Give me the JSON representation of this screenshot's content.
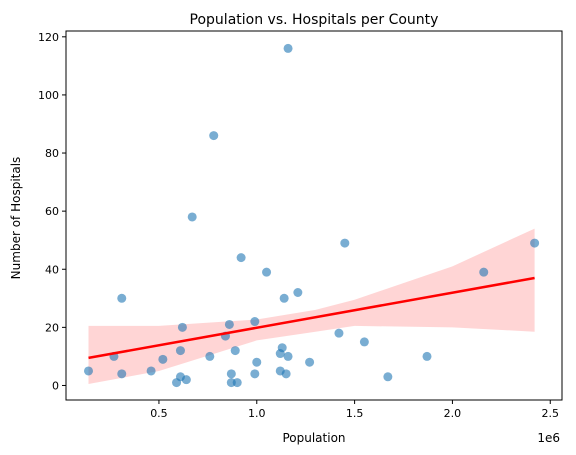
{
  "chart_data": {
    "type": "scatter",
    "title": "Population vs. Hospitals per County",
    "xlabel": "Population",
    "ylabel": "Number of Hospitals",
    "x_offset_label": "1e6",
    "xlim": [
      25000,
      2560000
    ],
    "ylim": [
      -5,
      122
    ],
    "x_ticks": [
      500000,
      1000000,
      1500000,
      2000000,
      2500000
    ],
    "x_tick_labels": [
      "0.5",
      "1.0",
      "1.5",
      "2.0",
      "2.5"
    ],
    "y_ticks": [
      0,
      20,
      40,
      60,
      80,
      100,
      120
    ],
    "y_tick_labels": [
      "0",
      "20",
      "40",
      "60",
      "80",
      "100",
      "120"
    ],
    "grid": false,
    "colors": {
      "points": "#1f77b4",
      "regression_line": "#ff0000",
      "confidence_band": "#ffb3b3"
    },
    "points": [
      {
        "x": 140000,
        "y": 5
      },
      {
        "x": 270000,
        "y": 10
      },
      {
        "x": 310000,
        "y": 30
      },
      {
        "x": 310000,
        "y": 4
      },
      {
        "x": 460000,
        "y": 5
      },
      {
        "x": 520000,
        "y": 9
      },
      {
        "x": 590000,
        "y": 1
      },
      {
        "x": 610000,
        "y": 12
      },
      {
        "x": 610000,
        "y": 3
      },
      {
        "x": 620000,
        "y": 20
      },
      {
        "x": 640000,
        "y": 2
      },
      {
        "x": 670000,
        "y": 58
      },
      {
        "x": 760000,
        "y": 10
      },
      {
        "x": 780000,
        "y": 86
      },
      {
        "x": 840000,
        "y": 17
      },
      {
        "x": 860000,
        "y": 21
      },
      {
        "x": 870000,
        "y": 4
      },
      {
        "x": 870000,
        "y": 1
      },
      {
        "x": 890000,
        "y": 12
      },
      {
        "x": 900000,
        "y": 1
      },
      {
        "x": 920000,
        "y": 44
      },
      {
        "x": 990000,
        "y": 4
      },
      {
        "x": 990000,
        "y": 22
      },
      {
        "x": 1000000,
        "y": 8
      },
      {
        "x": 1050000,
        "y": 39
      },
      {
        "x": 1120000,
        "y": 11
      },
      {
        "x": 1120000,
        "y": 5
      },
      {
        "x": 1130000,
        "y": 13
      },
      {
        "x": 1140000,
        "y": 30
      },
      {
        "x": 1150000,
        "y": 4
      },
      {
        "x": 1160000,
        "y": 10
      },
      {
        "x": 1160000,
        "y": 116
      },
      {
        "x": 1210000,
        "y": 32
      },
      {
        "x": 1270000,
        "y": 8
      },
      {
        "x": 1420000,
        "y": 18
      },
      {
        "x": 1450000,
        "y": 49
      },
      {
        "x": 1550000,
        "y": 15
      },
      {
        "x": 1670000,
        "y": 3
      },
      {
        "x": 1870000,
        "y": 10
      },
      {
        "x": 2160000,
        "y": 39
      },
      {
        "x": 2420000,
        "y": 49
      }
    ],
    "regression": {
      "x": [
        140000,
        2420000
      ],
      "y": [
        9.5,
        37
      ]
    },
    "confidence_band": {
      "x": [
        140000,
        500000,
        1000000,
        1300000,
        1500000,
        2000000,
        2420000
      ],
      "upper": [
        20.5,
        20.5,
        22.7,
        26,
        29.5,
        41,
        54
      ],
      "lower": [
        0.5,
        5,
        15.5,
        18.5,
        20.5,
        20,
        18.5
      ]
    }
  }
}
